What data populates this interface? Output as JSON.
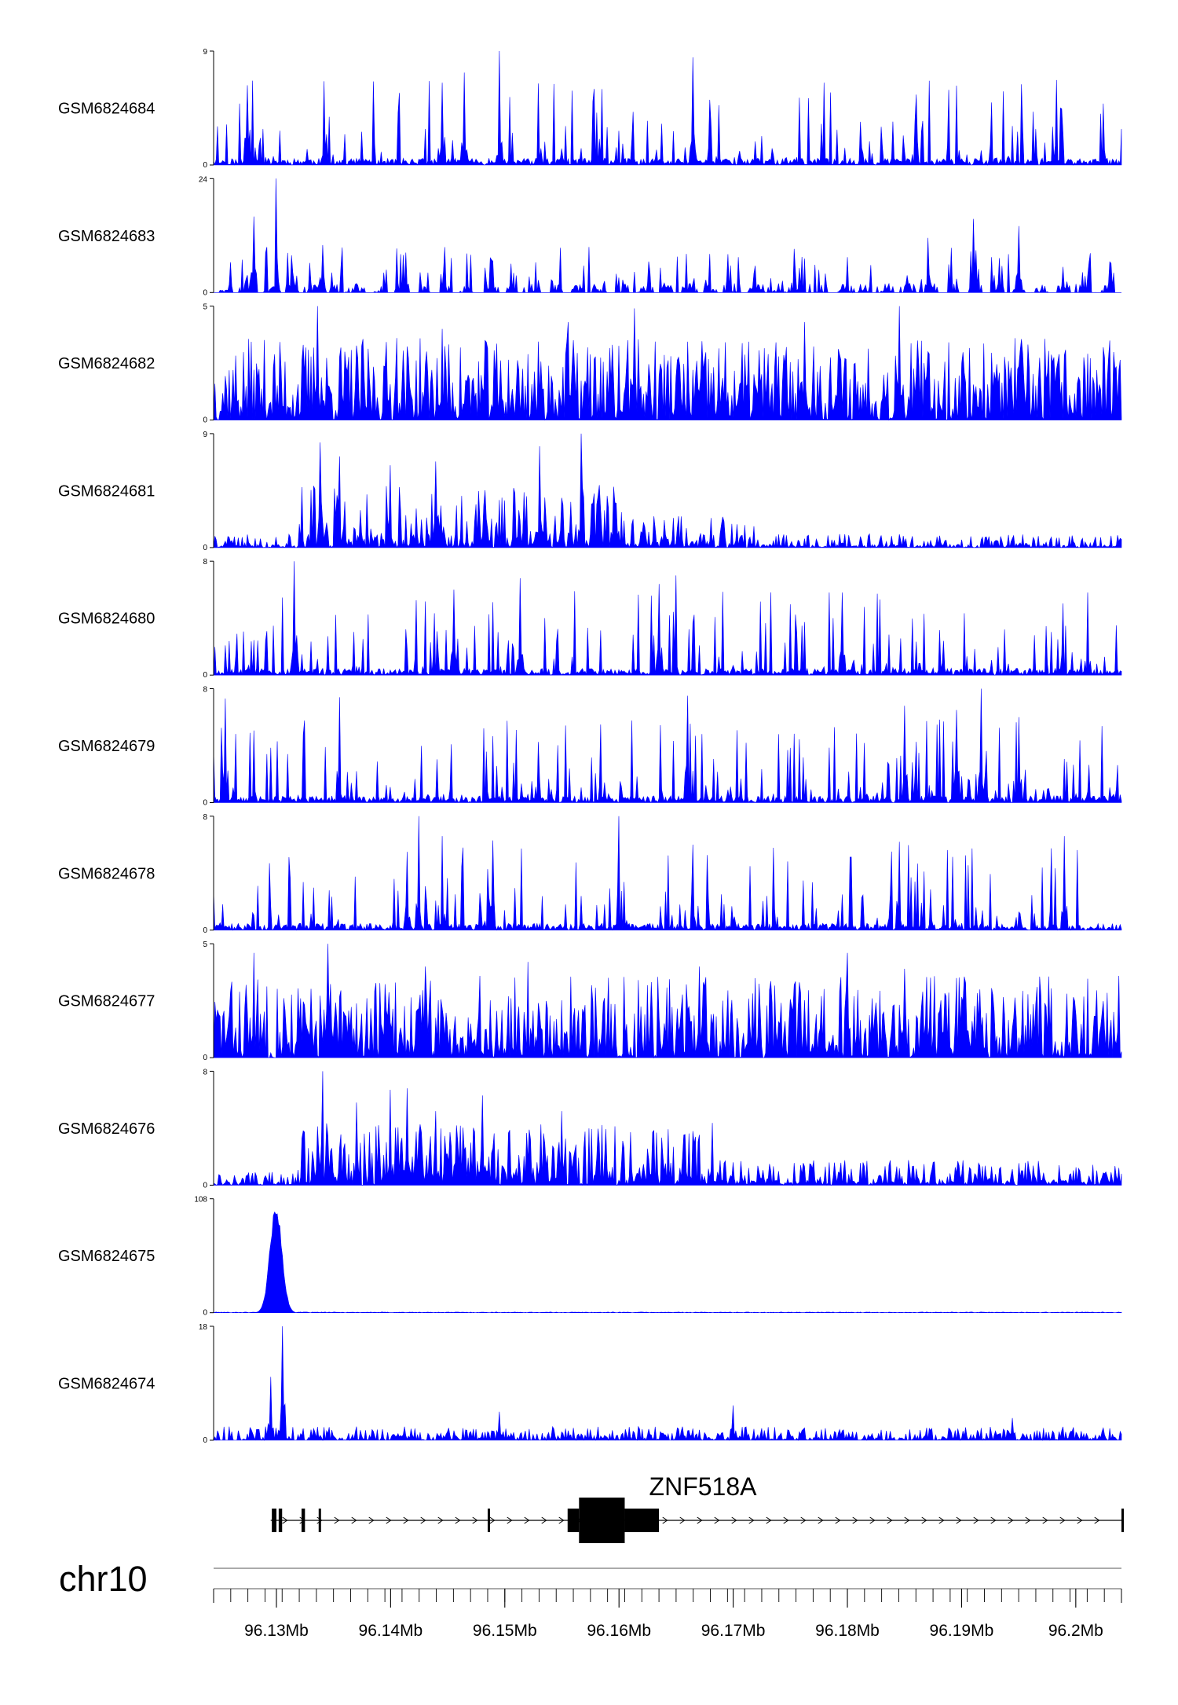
{
  "chart_data": {
    "type": "area",
    "color": "#0000FF",
    "region": {
      "chromosome": "chr10",
      "xlim": [
        96.1245,
        96.204
      ],
      "tick_values": [
        96.13,
        96.14,
        96.15,
        96.16,
        96.17,
        96.18,
        96.19,
        96.2
      ],
      "tick_labels": [
        "96.13Mb",
        "96.14Mb",
        "96.15Mb",
        "96.16Mb",
        "96.17Mb",
        "96.18Mb",
        "96.19Mb",
        "96.2Mb"
      ],
      "minor_tick_step": 0.0015
    },
    "tracks": [
      {
        "name": "GSM6824684",
        "ymin_label": "0",
        "ymax_label": "9",
        "ylim": [
          0,
          9
        ],
        "profile": "sparse",
        "seed": 11,
        "peaks": [
          [
            96.1495,
            9.0
          ],
          [
            96.1665,
            8.5
          ],
          [
            96.1465,
            7.3
          ],
          [
            96.178,
            6.5
          ],
          [
            96.1275,
            6.3
          ],
          [
            96.1445,
            6.5
          ],
          [
            96.1585,
            6.0
          ]
        ]
      },
      {
        "name": "GSM6824683",
        "ymin_label": "0",
        "ymax_label": "24",
        "ylim": [
          0,
          24
        ],
        "profile": "gappy",
        "seed": 23,
        "peaks": [
          [
            96.13,
            24.0
          ],
          [
            96.128,
            16.0
          ],
          [
            96.191,
            15.5
          ],
          [
            96.187,
            11.5
          ],
          [
            96.195,
            14.0
          ],
          [
            96.134,
            10.0
          ]
        ]
      },
      {
        "name": "GSM6824682",
        "ymin_label": "0",
        "ymax_label": "5",
        "ylim": [
          0,
          5
        ],
        "profile": "dense",
        "seed": 37,
        "peaks": [
          [
            96.1336,
            5.0
          ],
          [
            96.1845,
            5.0
          ],
          [
            96.1613,
            4.9
          ],
          [
            96.1555,
            4.3
          ],
          [
            96.1762,
            4.3
          ],
          [
            96.1445,
            4.0
          ],
          [
            96.1405,
            3.6
          ]
        ]
      },
      {
        "name": "GSM6824681",
        "ymin_label": "0",
        "ymax_label": "9",
        "ylim": [
          0,
          9
        ],
        "profile": "broad",
        "seed": 41,
        "peaks": [
          [
            96.1567,
            9.0
          ],
          [
            96.1338,
            8.3
          ],
          [
            96.153,
            8.0
          ],
          [
            96.1355,
            7.2
          ],
          [
            96.144,
            6.8
          ],
          [
            96.14,
            6.5
          ],
          [
            96.1595,
            4.8
          ]
        ]
      },
      {
        "name": "GSM6824680",
        "ymin_label": "0",
        "ymax_label": "8",
        "ylim": [
          0,
          8
        ],
        "profile": "sparse",
        "seed": 53,
        "peaks": [
          [
            96.1315,
            8.0
          ],
          [
            96.1513,
            6.8
          ],
          [
            96.165,
            7.0
          ],
          [
            96.1455,
            6.0
          ],
          [
            96.1795,
            5.8
          ],
          [
            96.201,
            5.8
          ],
          [
            96.1635,
            6.4
          ]
        ]
      },
      {
        "name": "GSM6824679",
        "ymin_label": "0",
        "ymax_label": "8",
        "ylim": [
          0,
          8
        ],
        "profile": "sparse",
        "seed": 61,
        "peaks": [
          [
            96.1917,
            8.0
          ],
          [
            96.1255,
            7.3
          ],
          [
            96.166,
            7.5
          ],
          [
            96.1355,
            7.4
          ],
          [
            96.185,
            6.8
          ],
          [
            96.195,
            6.0
          ],
          [
            96.1895,
            6.5
          ]
        ]
      },
      {
        "name": "GSM6824678",
        "ymin_label": "0",
        "ymax_label": "8",
        "ylim": [
          0,
          8
        ],
        "profile": "sparse",
        "seed": 71,
        "peaks": [
          [
            96.1425,
            8.0
          ],
          [
            96.16,
            8.0
          ],
          [
            96.1415,
            5.5
          ],
          [
            96.1445,
            6.6
          ],
          [
            96.1665,
            6.0
          ],
          [
            96.149,
            6.3
          ],
          [
            96.1845,
            6.2
          ],
          [
            96.199,
            6.6
          ]
        ]
      },
      {
        "name": "GSM6824677",
        "ymin_label": "0",
        "ymax_label": "5",
        "ylim": [
          0,
          5
        ],
        "profile": "dense",
        "seed": 83,
        "peaks": [
          [
            96.1345,
            5.0
          ],
          [
            96.18,
            4.6
          ],
          [
            96.128,
            4.6
          ],
          [
            96.152,
            4.2
          ],
          [
            96.167,
            4.0
          ],
          [
            96.185,
            3.9
          ],
          [
            96.143,
            4.0
          ]
        ]
      },
      {
        "name": "GSM6824676",
        "ymin_label": "0",
        "ymax_label": "8",
        "ylim": [
          0,
          8
        ],
        "profile": "broad2",
        "seed": 97,
        "peaks": [
          [
            96.134,
            8.0
          ],
          [
            96.14,
            6.7
          ],
          [
            96.148,
            6.3
          ],
          [
            96.137,
            5.8
          ],
          [
            96.155,
            5.2
          ],
          [
            96.144,
            5.2
          ],
          [
            96.1415,
            6.8
          ]
        ]
      },
      {
        "name": "GSM6824675",
        "ymin_label": "0",
        "ymax_label": "108",
        "ylim": [
          0,
          108
        ],
        "profile": "single",
        "seed": 101,
        "peaks": [
          [
            96.13,
            108.0
          ]
        ]
      },
      {
        "name": "GSM6824674",
        "ymin_label": "0",
        "ymax_label": "18",
        "ylim": [
          0,
          18
        ],
        "profile": "lowpeak",
        "seed": 113,
        "peaks": [
          [
            96.1305,
            18.0
          ],
          [
            96.1295,
            10.0
          ],
          [
            96.1495,
            4.5
          ],
          [
            96.17,
            5.5
          ],
          [
            96.1945,
            3.5
          ]
        ]
      }
    ],
    "gene": {
      "name": "ZNF518A",
      "start": 96.1295,
      "end": 96.204,
      "strand": "+",
      "thin_exons": [
        [
          96.1296,
          96.13
        ],
        [
          96.1302,
          96.1305
        ],
        [
          96.1322,
          96.1325
        ],
        [
          96.1337,
          96.1339
        ],
        [
          96.1485,
          96.1487
        ],
        [
          96.204,
          96.2041
        ]
      ],
      "utr_blocks": [
        [
          96.1555,
          96.1565
        ],
        [
          96.1605,
          96.1635
        ]
      ],
      "cds_blocks": [
        [
          96.1565,
          96.1605
        ]
      ]
    }
  }
}
